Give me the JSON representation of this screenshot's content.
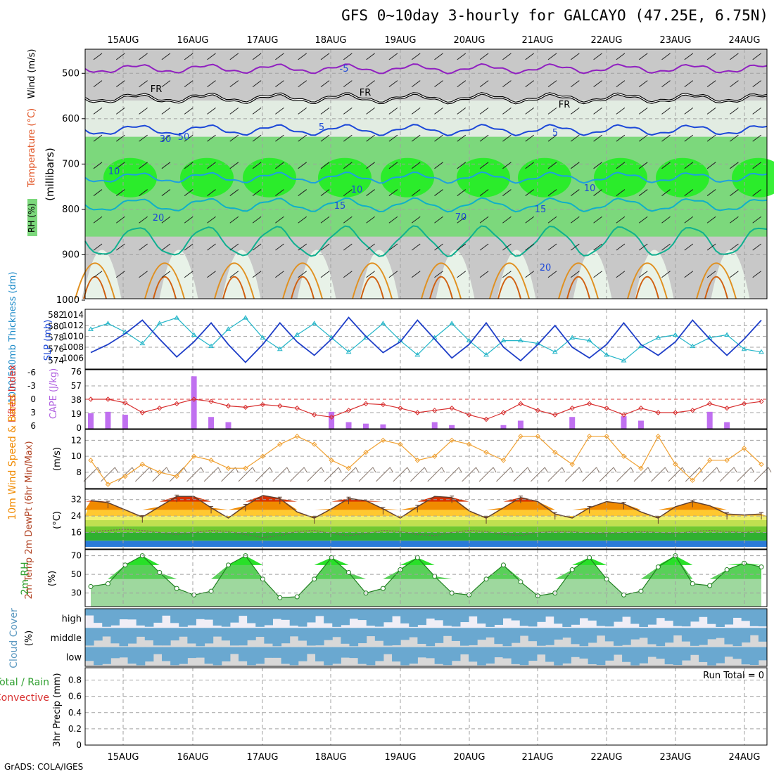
{
  "header": {
    "title": "GFS 0~10day 3-hourly for GALCAYO (47.25E, 6.75N)",
    "credit": "GrADS: COLA/IGES"
  },
  "colors": {
    "frame": "#000000",
    "grid": "#a0a0a0",
    "rh_green_light": "#cfe5cf",
    "rh_green_mid": "#7cd87c",
    "rh_green_bright": "#22ee22",
    "rh_gray": "#c8c8c8",
    "slp": "#1f3fc8",
    "thickness": "#22b5c8",
    "lifted_index": "#d83030",
    "cape": "#c070f0",
    "wind10": "#f0a030",
    "barbs": "#8a7a70",
    "temp_hot": "#d83000",
    "temp_warm": "#f08a00",
    "temp_mild": "#ffc830",
    "dew_green": "#30b030",
    "dew_blue": "#2a7ad8",
    "rh2m": "#30c030",
    "cloud": "#6aa8d0",
    "cloud_bg": "#d8d8d8",
    "cloud_bg_high": "#f0eef6"
  },
  "chart_data": [
    {
      "id": "upper_air",
      "type": "heatmap",
      "ylabel": "(millibars)",
      "side_labels": [
        "RH (%)",
        "Temperature (°C)",
        "Wind (m/s)"
      ],
      "yticks": [
        "500",
        "600",
        "700",
        "800",
        "900",
        "1000"
      ],
      "ylim": [
        1000,
        450
      ],
      "dates": [
        "15AUG",
        "16AUG",
        "17AUG",
        "18AUG",
        "19AUG",
        "20AUG",
        "21AUG",
        "22AUG",
        "23AUG",
        "24AUG"
      ],
      "contour_labels": [
        "-5",
        "FR",
        "FR",
        "FR",
        "5",
        "5",
        "10",
        "10",
        "10",
        "15",
        "15",
        "20",
        "20",
        "30",
        "50",
        "70"
      ]
    },
    {
      "id": "slp_thickness",
      "type": "line",
      "ylabel_left": "1000-500mb Thickness (dm)",
      "ylabel_right": "SLP (mb)",
      "yticks_left": [
        "574",
        "576",
        "578",
        "580",
        "582"
      ],
      "yticks_right": [
        "1006",
        "1008",
        "1010",
        "1012",
        "1014"
      ],
      "series": [
        {
          "name": "SLP (mb)",
          "values": [
            1007.0,
            1008.5,
            1010.5,
            1013.0,
            1009.5,
            1006.2,
            1009.0,
            1012.5,
            1008.5,
            1005.2,
            1008.5,
            1012.5,
            1009.0,
            1006.5,
            1009.5,
            1013.5,
            1010.0,
            1007.0,
            1009.0,
            1013.0,
            1009.5,
            1006.0,
            1008.5,
            1012.5,
            1008.0,
            1005.5,
            1008.5,
            1012.0,
            1008.0,
            1006.0,
            1008.5,
            1012.5,
            1008.5,
            1006.5,
            1009.0,
            1013.0,
            1009.5,
            1006.5,
            1009.5,
            1013.0
          ]
        },
        {
          "name": "1000-500mb Thickness (dm)",
          "values": [
            579.5,
            580.5,
            579.0,
            577.0,
            580.5,
            581.5,
            578.5,
            576.5,
            579.5,
            581.5,
            578.0,
            576.0,
            578.5,
            580.5,
            578.0,
            575.5,
            578.0,
            580.5,
            577.5,
            575.0,
            578.0,
            580.5,
            577.5,
            575.0,
            577.5,
            577.5,
            577.0,
            575.5,
            578.0,
            577.5,
            575.0,
            574.0,
            576.5,
            578.0,
            578.5,
            576.5,
            578.0,
            578.5,
            576.0,
            575.5
          ]
        }
      ]
    },
    {
      "id": "lifted_cape",
      "type": "bar",
      "ylabel_left": "Lifted Index",
      "ylabel_right": "CAPE (J/kg)",
      "yticks_left": [
        "-6",
        "-3",
        "0",
        "3",
        "6"
      ],
      "yticks_right": [
        "76",
        "57",
        "38",
        "19",
        "0"
      ],
      "series": [
        {
          "name": "Lifted Index",
          "values": [
            0.0,
            0.0,
            0.8,
            3.0,
            2.0,
            1.0,
            0.0,
            0.5,
            1.5,
            1.8,
            1.2,
            1.5,
            2.0,
            3.5,
            4.0,
            2.5,
            1.0,
            1.2,
            2.0,
            3.0,
            2.5,
            2.0,
            3.5,
            4.5,
            3.0,
            1.0,
            2.5,
            3.5,
            2.0,
            1.0,
            2.0,
            3.5,
            2.0,
            3.0,
            3.0,
            2.5,
            1.0,
            2.0,
            1.0,
            0.5
          ]
        },
        {
          "name": "CAPE (J/kg)",
          "values": [
            20,
            22,
            18,
            0,
            0,
            0,
            70,
            15,
            8,
            0,
            0,
            0,
            0,
            0,
            22,
            8,
            6,
            5,
            0,
            0,
            8,
            4,
            0,
            0,
            4,
            10,
            0,
            0,
            15,
            0,
            0,
            16,
            10,
            0,
            0,
            0,
            22,
            8,
            0,
            0
          ]
        }
      ]
    },
    {
      "id": "wind10m",
      "type": "line",
      "ylabel_left": "10m Wind Speed & Barbs",
      "ylabel_right": "(m/s)",
      "yticks": [
        "8",
        "10",
        "12"
      ],
      "series": [
        {
          "name": "10m Wind Speed (m/s)",
          "values": [
            9.5,
            6.5,
            7.5,
            9.0,
            8.0,
            7.5,
            10.0,
            9.5,
            8.5,
            8.5,
            10.0,
            11.5,
            12.5,
            11.5,
            9.5,
            8.5,
            10.5,
            12.0,
            11.5,
            9.5,
            10.0,
            12.0,
            11.5,
            10.5,
            9.5,
            12.5,
            12.5,
            10.5,
            9.0,
            12.5,
            12.5,
            10.0,
            8.5,
            12.5,
            9.0,
            7.0,
            9.5,
            9.5,
            11.0,
            9.0
          ]
        }
      ]
    },
    {
      "id": "temp2m",
      "type": "area",
      "ylabel_left": "2m Temp 2m DewPt (6hr Min/Max)",
      "ylabel_right": "(°C)",
      "yticks": [
        "16",
        "24",
        "32"
      ],
      "series": [
        {
          "name": "2m Temp (°C)",
          "values": [
            31.5,
            30.5,
            27.0,
            23.5,
            28.5,
            33.5,
            33.5,
            28.0,
            23.0,
            29.0,
            34.0,
            32.5,
            26.0,
            23.0,
            27.5,
            32.5,
            31.5,
            27.5,
            23.0,
            28.5,
            33.5,
            33.0,
            26.5,
            23.0,
            28.0,
            33.0,
            31.0,
            25.0,
            23.0,
            28.0,
            31.0,
            30.0,
            26.0,
            23.0,
            28.5,
            31.0,
            29.0,
            25.0,
            24.5,
            25.0
          ]
        },
        {
          "name": "2m DewPt (°C)",
          "values": [
            16.5,
            17.0,
            17.5,
            17.0,
            16.0,
            15.0,
            16.0,
            17.0,
            16.5,
            15.0,
            13.5,
            14.5,
            16.5,
            17.0,
            15.5,
            14.5,
            15.5,
            17.0,
            16.5,
            15.0,
            14.5,
            16.0,
            17.0,
            16.5,
            15.0,
            14.5,
            16.0,
            16.5,
            16.5,
            15.5,
            15.5,
            16.0,
            16.5,
            16.0,
            15.5,
            16.5,
            17.0,
            16.5,
            16.0,
            17.0
          ]
        }
      ]
    },
    {
      "id": "rh2m",
      "type": "area",
      "ylabel_left": "2m RH",
      "ylabel_right": "(%)",
      "yticks": [
        "30",
        "50",
        "70"
      ],
      "series": [
        {
          "name": "2m RH (%)",
          "values": [
            37,
            40,
            60,
            70,
            52,
            35,
            28,
            32,
            60,
            70,
            45,
            25,
            26,
            45,
            68,
            52,
            30,
            35,
            55,
            68,
            48,
            30,
            28,
            45,
            60,
            42,
            27,
            30,
            55,
            68,
            45,
            28,
            32,
            58,
            70,
            40,
            38,
            55,
            62,
            58
          ]
        }
      ]
    },
    {
      "id": "cloud",
      "type": "heatmap",
      "ylabel_left": "Cloud Cover",
      "ylabel_right": "(%)",
      "rows": [
        "high",
        "middle",
        "low"
      ]
    },
    {
      "id": "precip",
      "type": "bar",
      "ylabel_left": "Total / Rain Convective",
      "ylabel_right": "3hr Precip (mm)",
      "yticks": [
        "0",
        "0.2",
        "0.4",
        "0.6",
        "0.8"
      ],
      "annotation": "Run Total = 0",
      "values": []
    }
  ]
}
